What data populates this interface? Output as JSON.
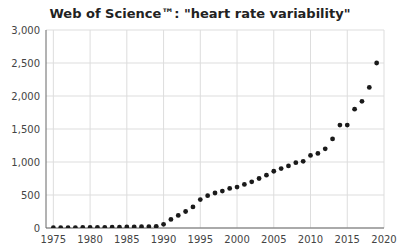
{
  "chart_data": {
    "type": "scatter",
    "title": "Web of Science™: \"heart rate variability\"",
    "x": [
      1975,
      1976,
      1977,
      1978,
      1979,
      1980,
      1981,
      1982,
      1983,
      1984,
      1985,
      1986,
      1987,
      1988,
      1989,
      1990,
      1991,
      1992,
      1993,
      1994,
      1995,
      1996,
      1997,
      1998,
      1999,
      2000,
      2001,
      2002,
      2003,
      2004,
      2005,
      2006,
      2007,
      2008,
      2009,
      2010,
      2011,
      2012,
      2013,
      2014,
      2015,
      2016,
      2017,
      2018,
      2019
    ],
    "values": [
      5,
      5,
      5,
      5,
      8,
      8,
      10,
      10,
      12,
      12,
      15,
      18,
      20,
      22,
      25,
      55,
      130,
      190,
      250,
      320,
      430,
      490,
      530,
      560,
      600,
      620,
      660,
      700,
      750,
      800,
      860,
      900,
      940,
      990,
      1010,
      1100,
      1130,
      1200,
      1350,
      1560,
      1560,
      1800,
      1920,
      2130,
      2500
    ],
    "color": "#1a1a1a",
    "xlim": [
      1974,
      2020
    ],
    "ylim": [
      0,
      3000
    ],
    "xticks": [
      1975,
      1980,
      1985,
      1990,
      1995,
      2000,
      2005,
      2010,
      2015,
      2020
    ],
    "yticks": [
      0,
      500,
      {
        "value": 1000,
        "label": "1,000"
      },
      {
        "value": 1500,
        "label": "1,500"
      },
      {
        "value": 2000,
        "label": "2,000"
      },
      {
        "value": 2500,
        "label": "2,500"
      },
      {
        "value": 3000,
        "label": "3,000"
      }
    ],
    "grid": true
  }
}
